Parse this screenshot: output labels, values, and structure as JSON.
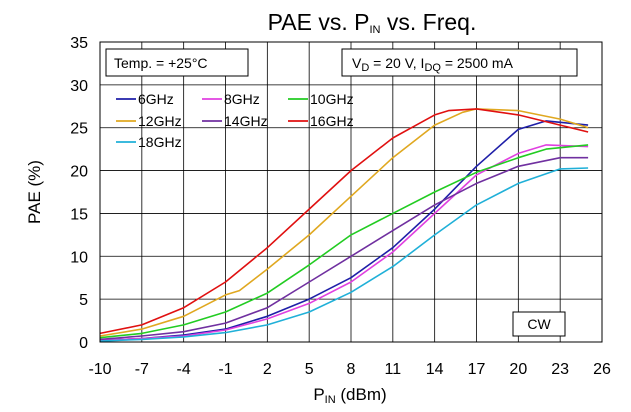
{
  "chart_data": {
    "type": "line",
    "title": {
      "main": "PAE vs. P",
      "sub": "IN",
      "rest": " vs. Freq."
    },
    "xlabel": {
      "main": "P",
      "sub": "IN",
      "rest": " (dBm)"
    },
    "ylabel": "PAE (%)",
    "xlim": [
      -10,
      26
    ],
    "ylim": [
      0,
      35
    ],
    "xticks": [
      -10,
      -7,
      -4,
      -1,
      2,
      5,
      8,
      11,
      14,
      17,
      20,
      23,
      26
    ],
    "yticks": [
      0,
      5,
      10,
      15,
      20,
      25,
      30,
      35
    ],
    "x_tick_labels": [
      "-10",
      "-7",
      "-4",
      "-1",
      "2",
      "5",
      "8",
      "11",
      "14",
      "17",
      "20",
      "23",
      "26"
    ],
    "y_tick_labels": [
      "0",
      "5",
      "10",
      "15",
      "20",
      "25",
      "30",
      "35"
    ],
    "grid": true,
    "annotations": {
      "temp": "Temp. = +25°C",
      "bias": {
        "p1": "V",
        "s1": "D",
        "p2": " = 20 V, I",
        "s2": "DQ",
        "p3": " = 2500 mA"
      },
      "mode": "CW"
    },
    "legend_placement": "top-left",
    "series": [
      {
        "name": "6GHz",
        "color": "#1f1fa8",
        "x": [
          -10,
          -7,
          -4,
          -1,
          2,
          5,
          8,
          11,
          14,
          17,
          20,
          22,
          25
        ],
        "y": [
          0.2,
          0.4,
          0.8,
          1.5,
          3.0,
          5.0,
          7.5,
          11.0,
          15.5,
          20.5,
          24.8,
          25.8,
          25.3
        ]
      },
      {
        "name": "8GHz",
        "color": "#e040e0",
        "x": [
          -10,
          -7,
          -4,
          -1,
          2,
          5,
          8,
          11,
          14,
          17,
          20,
          22,
          25
        ],
        "y": [
          0.2,
          0.4,
          0.7,
          1.4,
          2.7,
          4.5,
          7.0,
          10.5,
          15.0,
          19.5,
          22.0,
          23.0,
          22.8
        ]
      },
      {
        "name": "10GHz",
        "color": "#22cc22",
        "x": [
          -10,
          -7,
          -4,
          -1,
          2,
          5,
          8,
          11,
          14,
          17,
          20,
          22,
          25
        ],
        "y": [
          0.5,
          1.0,
          2.0,
          3.5,
          5.7,
          9.0,
          12.5,
          15.0,
          17.5,
          19.8,
          21.5,
          22.5,
          23.0
        ]
      },
      {
        "name": "12GHz",
        "color": "#e0a820",
        "x": [
          -10,
          -7,
          -4,
          -1,
          0,
          2,
          5,
          8,
          11,
          14,
          16,
          17,
          20,
          23,
          25
        ],
        "y": [
          0.7,
          1.5,
          3.0,
          5.5,
          6.0,
          8.5,
          12.5,
          17.0,
          21.5,
          25.3,
          26.8,
          27.2,
          27.0,
          26.0,
          25.0
        ]
      },
      {
        "name": "14GHz",
        "color": "#7030a0",
        "x": [
          -10,
          -7,
          -4,
          -1,
          2,
          5,
          8,
          11,
          14,
          17,
          20,
          23,
          25
        ],
        "y": [
          0.3,
          0.7,
          1.2,
          2.2,
          4.0,
          7.0,
          10.0,
          13.0,
          16.0,
          18.5,
          20.5,
          21.5,
          21.5
        ]
      },
      {
        "name": "16GHz",
        "color": "#e01010",
        "x": [
          -10,
          -7,
          -4,
          -1,
          2,
          5,
          8,
          11,
          14,
          15,
          17,
          20,
          23,
          25
        ],
        "y": [
          1.0,
          2.0,
          4.0,
          7.0,
          11.0,
          15.5,
          20.0,
          23.8,
          26.5,
          27.0,
          27.2,
          26.5,
          25.3,
          24.5
        ]
      },
      {
        "name": "18GHz",
        "color": "#20b0d8",
        "x": [
          -10,
          -7,
          -4,
          -1,
          2,
          5,
          8,
          11,
          14,
          17,
          20,
          23,
          25
        ],
        "y": [
          0.1,
          0.3,
          0.6,
          1.1,
          2.0,
          3.5,
          5.8,
          8.8,
          12.5,
          16.0,
          18.5,
          20.2,
          20.3
        ]
      }
    ]
  }
}
